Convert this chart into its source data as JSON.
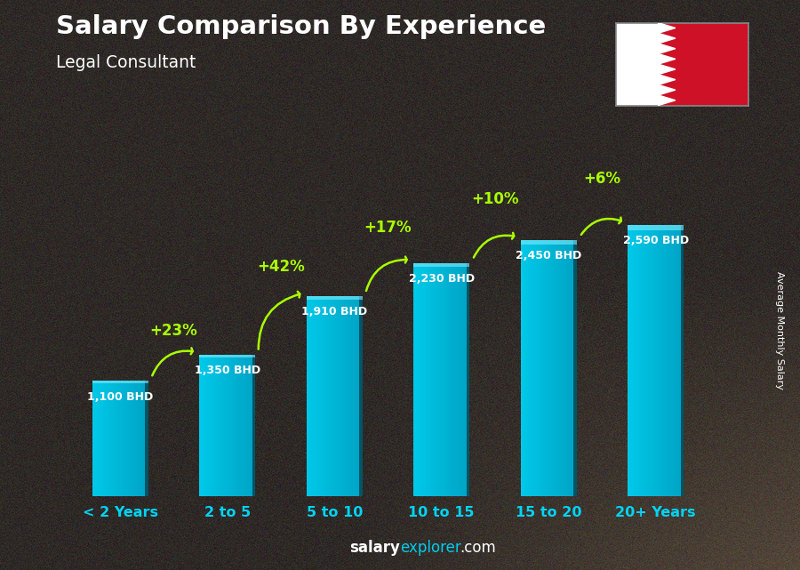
{
  "title": "Salary Comparison By Experience",
  "subtitle": "Legal Consultant",
  "categories": [
    "< 2 Years",
    "2 to 5",
    "5 to 10",
    "10 to 15",
    "15 to 20",
    "20+ Years"
  ],
  "values": [
    1100,
    1350,
    1910,
    2230,
    2450,
    2590
  ],
  "pct_changes": [
    "+23%",
    "+42%",
    "+17%",
    "+10%",
    "+6%"
  ],
  "bar_color_face": "#00c8e8",
  "bar_color_dark": "#0088aa",
  "bar_color_darker": "#005566",
  "bg_color": "#2a2a2a",
  "title_color": "#ffffff",
  "subtitle_color": "#ffffff",
  "value_color": "#ffffff",
  "pct_color": "#aaff00",
  "arrow_color": "#aaff00",
  "xlabel_color": "#00d4f5",
  "ylabel_text": "Average Monthly Salary",
  "ylim": [
    0,
    3000
  ],
  "bar_width": 0.52,
  "footer_salary_color": "#ffffff",
  "footer_explorer_color": "#00ccee",
  "footer_com_color": "#ffffff"
}
